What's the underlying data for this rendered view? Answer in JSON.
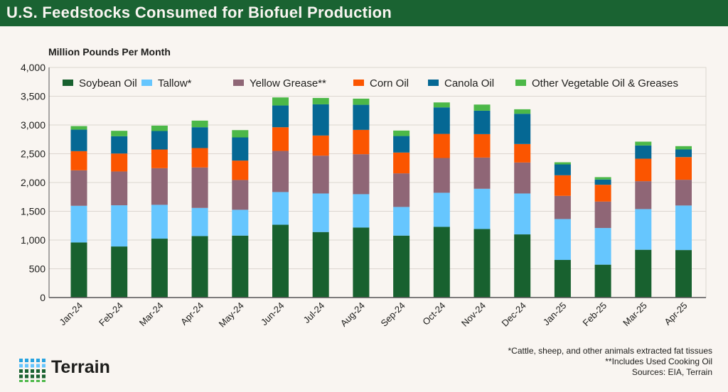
{
  "header": {
    "title": "U.S. Feedstocks Consumed for Biofuel Production"
  },
  "chart_data": {
    "type": "bar",
    "stacked": true,
    "title": "U.S. Feedstocks Consumed for Biofuel Production",
    "ylabel": "Million Pounds Per Month",
    "xlabel": "",
    "ylim": [
      0,
      4000
    ],
    "yticks": [
      "0",
      "500",
      "1,000",
      "1,500",
      "2,000",
      "2,500",
      "3,000",
      "3,500",
      "4,000"
    ],
    "grid": true,
    "legend": "top",
    "categories": [
      "Jan-24",
      "Feb-24",
      "Mar-24",
      "Apr-24",
      "May-24",
      "Jun-24",
      "Jul-24",
      "Aug-24",
      "Sep-24",
      "Oct-24",
      "Nov-24",
      "Dec-24",
      "Jan-25",
      "Feb-25",
      "Mar-25",
      "Apr-25"
    ],
    "series": [
      {
        "name": "Soybean Oil",
        "color": "#18612f",
        "values": [
          958,
          888,
          1024,
          1069,
          1077,
          1266,
          1139,
          1217,
          1077,
          1229,
          1192,
          1098,
          654,
          572,
          831,
          826
        ]
      },
      {
        "name": "Tallow*",
        "color": "#66c6fe",
        "values": [
          637,
          716,
          588,
          489,
          449,
          568,
          670,
          580,
          498,
          593,
          699,
          711,
          711,
          637,
          707,
          774
        ]
      },
      {
        "name": "Yellow Grease**",
        "color": "#8f6676",
        "values": [
          617,
          588,
          637,
          704,
          518,
          715,
          658,
          695,
          584,
          604,
          543,
          539,
          403,
          460,
          485,
          448
        ]
      },
      {
        "name": "Corn Oil",
        "color": "#fb5500",
        "values": [
          333,
          312,
          325,
          337,
          337,
          412,
          350,
          423,
          362,
          419,
          407,
          321,
          358,
          292,
          391,
          394
        ]
      },
      {
        "name": "Canola Oil",
        "color": "#056894",
        "values": [
          374,
          300,
          321,
          362,
          403,
          378,
          542,
          436,
          287,
          461,
          407,
          526,
          189,
          91,
          230,
          132
        ]
      },
      {
        "name": "Other Vegetable Oil & Greases",
        "color": "#4cb848",
        "values": [
          62,
          95,
          94,
          115,
          127,
          140,
          111,
          107,
          95,
          86,
          107,
          78,
          37,
          41,
          66,
          58
        ]
      }
    ]
  },
  "footer": {
    "note1": "*Cattle, sheep, and other animals extracted fat tissues",
    "note2": "**Includes Used Cooking Oil",
    "sources": "Sources: EIA, Terrain"
  },
  "logo": {
    "text": "Terrain"
  }
}
